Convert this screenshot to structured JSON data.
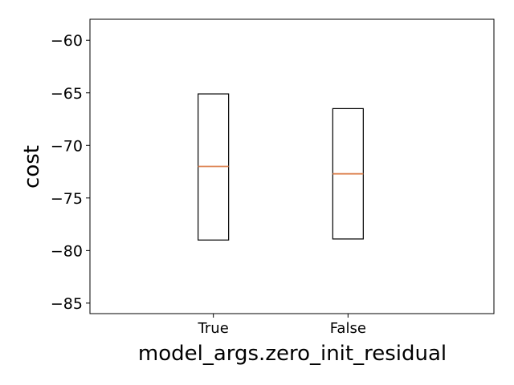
{
  "chart_data": {
    "type": "box",
    "xlabel": "model_args.zero_init_residual",
    "ylabel": "cost",
    "categories": [
      "True",
      "False"
    ],
    "ylim": [
      -86,
      -58
    ],
    "yticks": [
      -85,
      -80,
      -75,
      -70,
      -65,
      -60
    ],
    "ytick_labels": [
      "−85",
      "−80",
      "−75",
      "−70",
      "−65",
      "−60"
    ],
    "boxes": [
      {
        "category": "True",
        "q1": -79.0,
        "median": -72.0,
        "q3": -65.1
      },
      {
        "category": "False",
        "q1": -78.9,
        "median": -72.7,
        "q3": -66.5
      }
    ],
    "grid": false,
    "colors": {
      "box": "#000000",
      "median": "#dd8452"
    }
  }
}
